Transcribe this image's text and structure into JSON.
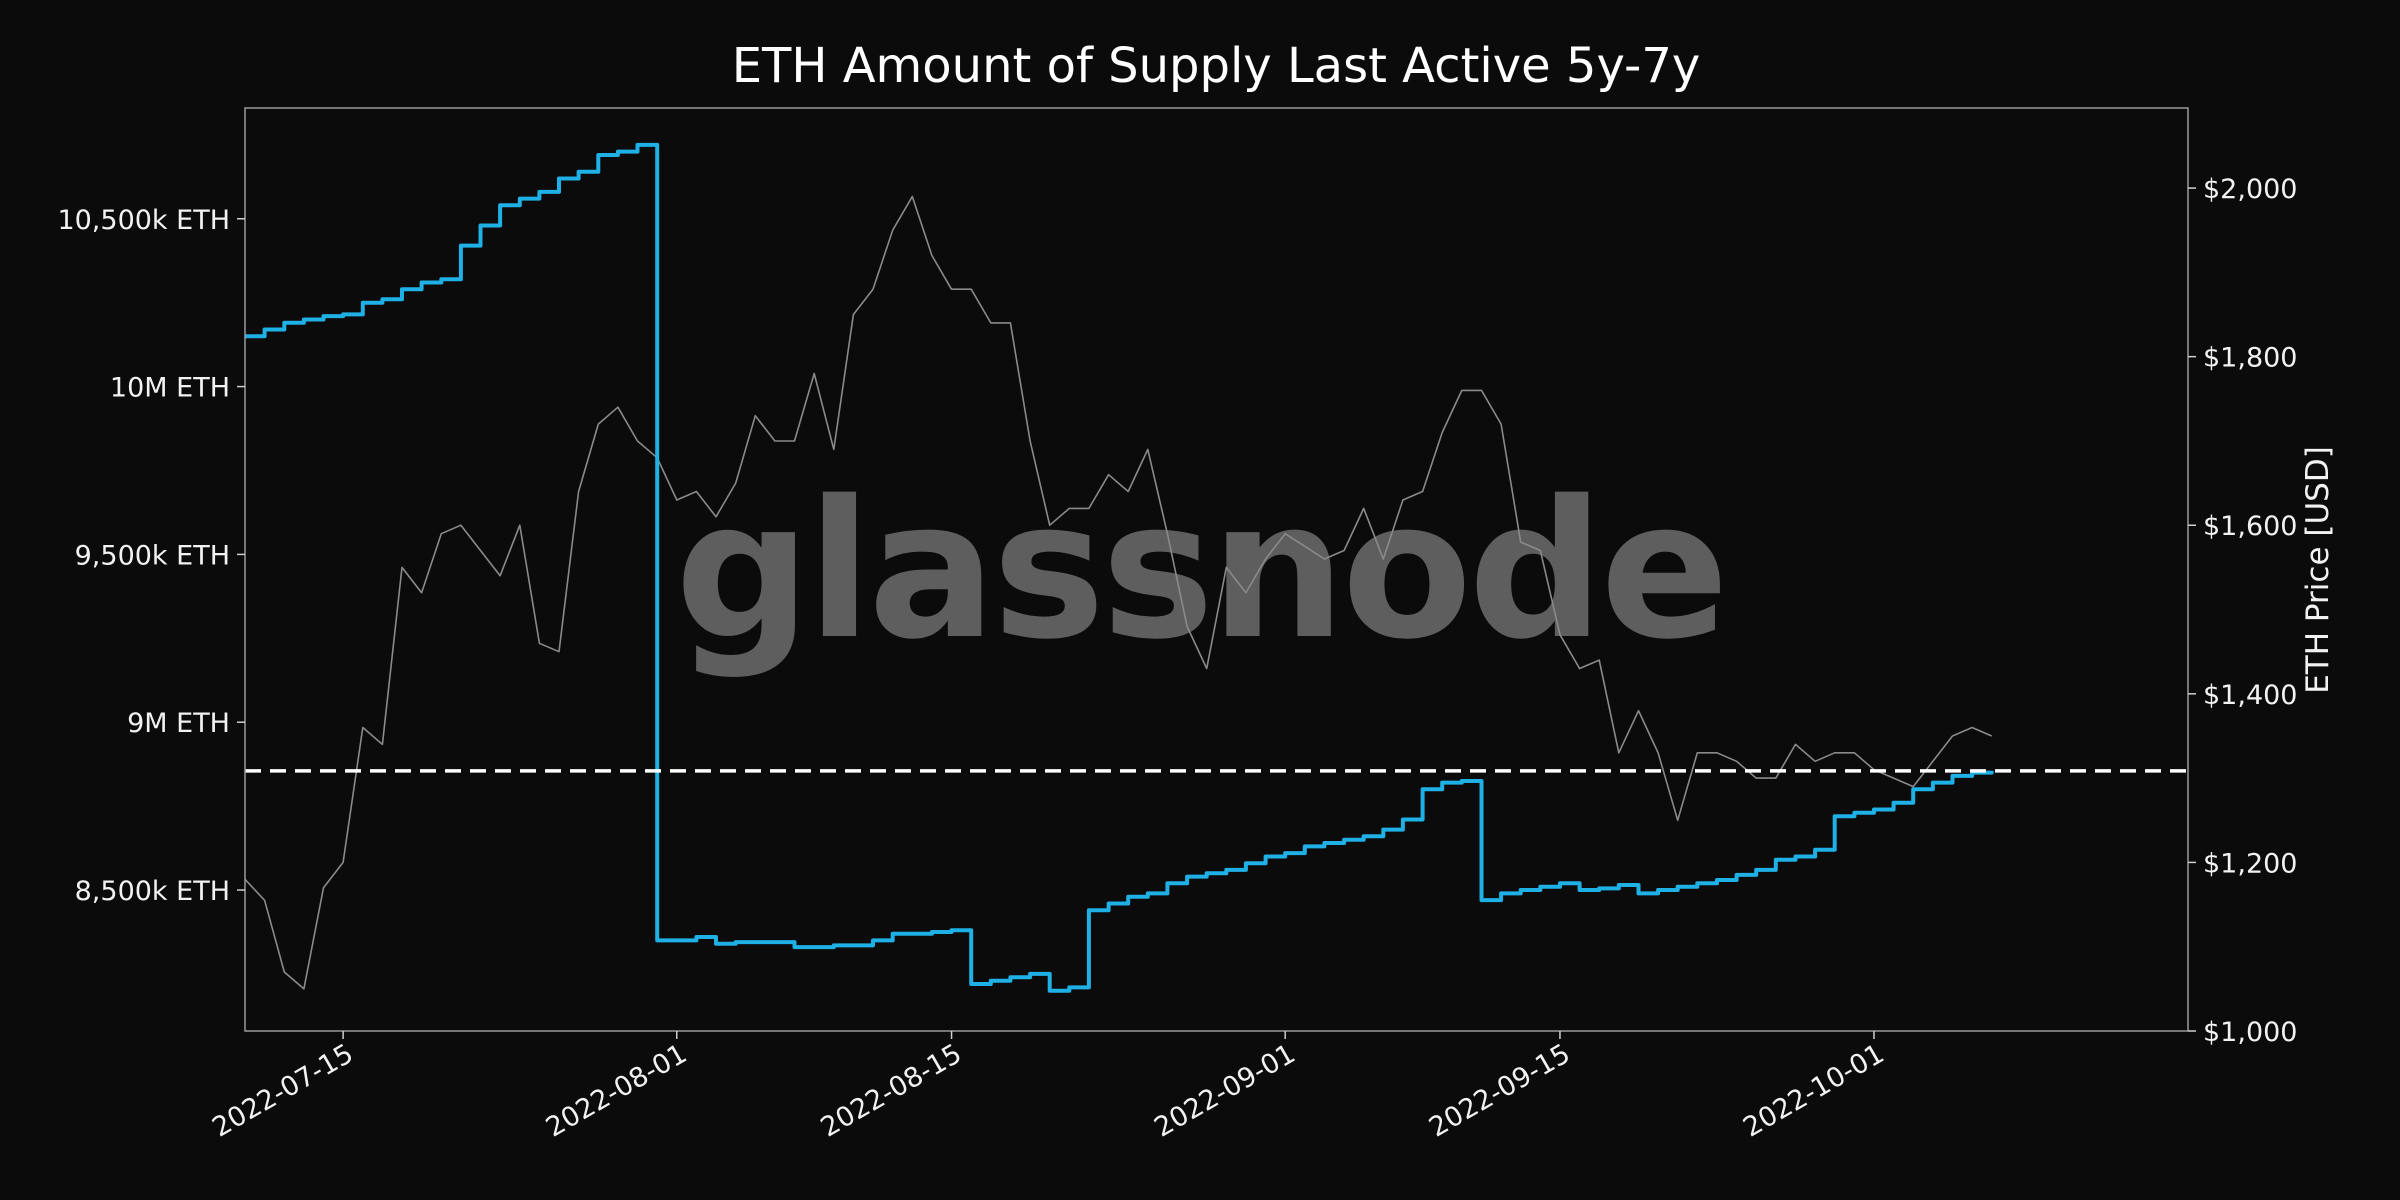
{
  "chart_data": {
    "type": "line",
    "title": "ETH Amount of Supply Last Active 5y-7y",
    "watermark": "glassnode",
    "x_range": [
      "2022-07-10",
      "2022-10-17"
    ],
    "x_ticks": [
      "2022-07-15",
      "2022-08-01",
      "2022-08-15",
      "2022-09-01",
      "2022-09-15",
      "2022-10-01"
    ],
    "y_left": {
      "label": "",
      "range": [
        8080000,
        10830000
      ],
      "ticks": [
        {
          "value": 8500000,
          "label": "8,500k ETH"
        },
        {
          "value": 9000000,
          "label": "9M ETH"
        },
        {
          "value": 9500000,
          "label": "9,500k ETH"
        },
        {
          "value": 10000000,
          "label": "10M ETH"
        },
        {
          "value": 10500000,
          "label": "10,500k ETH"
        }
      ]
    },
    "y_right": {
      "label": "ETH Price [USD]",
      "range": [
        1000,
        2095
      ],
      "ticks": [
        {
          "value": 1000,
          "label": "$1,000"
        },
        {
          "value": 1200,
          "label": "$1,200"
        },
        {
          "value": 1400,
          "label": "$1,400"
        },
        {
          "value": 1600,
          "label": "$1,600"
        },
        {
          "value": 1800,
          "label": "$1,800"
        },
        {
          "value": 2000,
          "label": "$2,000"
        }
      ]
    },
    "reference_line": {
      "value": 8855000,
      "axis": "left",
      "style": "dashed",
      "color": "#ffffff"
    },
    "series": [
      {
        "axis": "left",
        "color": "#1fb0e6",
        "step": true,
        "points": [
          [
            "2022-07-10",
            10150000
          ],
          [
            "2022-07-11",
            10170000
          ],
          [
            "2022-07-12",
            10190000
          ],
          [
            "2022-07-13",
            10200000
          ],
          [
            "2022-07-14",
            10210000
          ],
          [
            "2022-07-15",
            10215000
          ],
          [
            "2022-07-16",
            10250000
          ],
          [
            "2022-07-17",
            10260000
          ],
          [
            "2022-07-18",
            10290000
          ],
          [
            "2022-07-19",
            10310000
          ],
          [
            "2022-07-20",
            10320000
          ],
          [
            "2022-07-21",
            10420000
          ],
          [
            "2022-07-22",
            10480000
          ],
          [
            "2022-07-23",
            10540000
          ],
          [
            "2022-07-24",
            10560000
          ],
          [
            "2022-07-25",
            10580000
          ],
          [
            "2022-07-26",
            10620000
          ],
          [
            "2022-07-27",
            10640000
          ],
          [
            "2022-07-28",
            10690000
          ],
          [
            "2022-07-29",
            10700000
          ],
          [
            "2022-07-30",
            10720000
          ],
          [
            "2022-07-31",
            8350000
          ],
          [
            "2022-08-02",
            8360000
          ],
          [
            "2022-08-03",
            8340000
          ],
          [
            "2022-08-04",
            8345000
          ],
          [
            "2022-08-06",
            8345000
          ],
          [
            "2022-08-07",
            8330000
          ],
          [
            "2022-08-09",
            8335000
          ],
          [
            "2022-08-11",
            8350000
          ],
          [
            "2022-08-12",
            8370000
          ],
          [
            "2022-08-14",
            8375000
          ],
          [
            "2022-08-15",
            8380000
          ],
          [
            "2022-08-16",
            8220000
          ],
          [
            "2022-08-17",
            8230000
          ],
          [
            "2022-08-18",
            8240000
          ],
          [
            "2022-08-19",
            8250000
          ],
          [
            "2022-08-20",
            8200000
          ],
          [
            "2022-08-21",
            8210000
          ],
          [
            "2022-08-22",
            8440000
          ],
          [
            "2022-08-23",
            8460000
          ],
          [
            "2022-08-24",
            8480000
          ],
          [
            "2022-08-25",
            8490000
          ],
          [
            "2022-08-26",
            8520000
          ],
          [
            "2022-08-27",
            8540000
          ],
          [
            "2022-08-28",
            8550000
          ],
          [
            "2022-08-29",
            8560000
          ],
          [
            "2022-08-30",
            8580000
          ],
          [
            "2022-08-31",
            8600000
          ],
          [
            "2022-09-01",
            8610000
          ],
          [
            "2022-09-02",
            8630000
          ],
          [
            "2022-09-03",
            8640000
          ],
          [
            "2022-09-04",
            8650000
          ],
          [
            "2022-09-05",
            8660000
          ],
          [
            "2022-09-06",
            8680000
          ],
          [
            "2022-09-07",
            8710000
          ],
          [
            "2022-09-08",
            8800000
          ],
          [
            "2022-09-09",
            8820000
          ],
          [
            "2022-09-10",
            8825000
          ],
          [
            "2022-09-11",
            8470000
          ],
          [
            "2022-09-12",
            8490000
          ],
          [
            "2022-09-13",
            8500000
          ],
          [
            "2022-09-14",
            8510000
          ],
          [
            "2022-09-15",
            8520000
          ],
          [
            "2022-09-16",
            8500000
          ],
          [
            "2022-09-17",
            8505000
          ],
          [
            "2022-09-18",
            8515000
          ],
          [
            "2022-09-19",
            8490000
          ],
          [
            "2022-09-20",
            8500000
          ],
          [
            "2022-09-21",
            8510000
          ],
          [
            "2022-09-22",
            8520000
          ],
          [
            "2022-09-23",
            8530000
          ],
          [
            "2022-09-24",
            8545000
          ],
          [
            "2022-09-25",
            8560000
          ],
          [
            "2022-09-26",
            8590000
          ],
          [
            "2022-09-27",
            8600000
          ],
          [
            "2022-09-28",
            8620000
          ],
          [
            "2022-09-29",
            8720000
          ],
          [
            "2022-09-30",
            8730000
          ],
          [
            "2022-10-01",
            8740000
          ],
          [
            "2022-10-02",
            8760000
          ],
          [
            "2022-10-03",
            8800000
          ],
          [
            "2022-10-04",
            8820000
          ],
          [
            "2022-10-05",
            8840000
          ],
          [
            "2022-10-06",
            8850000
          ],
          [
            "2022-10-07",
            8855000
          ]
        ]
      },
      {
        "axis": "right",
        "color": "#8a8a8a",
        "step": false,
        "points": [
          [
            "2022-07-10",
            1180
          ],
          [
            "2022-07-11",
            1155
          ],
          [
            "2022-07-12",
            1070
          ],
          [
            "2022-07-13",
            1050
          ],
          [
            "2022-07-14",
            1170
          ],
          [
            "2022-07-15",
            1200
          ],
          [
            "2022-07-16",
            1360
          ],
          [
            "2022-07-17",
            1340
          ],
          [
            "2022-07-18",
            1550
          ],
          [
            "2022-07-19",
            1520
          ],
          [
            "2022-07-20",
            1590
          ],
          [
            "2022-07-21",
            1600
          ],
          [
            "2022-07-22",
            1570
          ],
          [
            "2022-07-23",
            1540
          ],
          [
            "2022-07-24",
            1600
          ],
          [
            "2022-07-25",
            1460
          ],
          [
            "2022-07-26",
            1450
          ],
          [
            "2022-07-27",
            1640
          ],
          [
            "2022-07-28",
            1720
          ],
          [
            "2022-07-29",
            1740
          ],
          [
            "2022-07-30",
            1700
          ],
          [
            "2022-07-31",
            1680
          ],
          [
            "2022-08-01",
            1630
          ],
          [
            "2022-08-02",
            1640
          ],
          [
            "2022-08-03",
            1610
          ],
          [
            "2022-08-04",
            1650
          ],
          [
            "2022-08-05",
            1730
          ],
          [
            "2022-08-06",
            1700
          ],
          [
            "2022-08-07",
            1700
          ],
          [
            "2022-08-08",
            1780
          ],
          [
            "2022-08-09",
            1690
          ],
          [
            "2022-08-10",
            1850
          ],
          [
            "2022-08-11",
            1880
          ],
          [
            "2022-08-12",
            1950
          ],
          [
            "2022-08-13",
            1990
          ],
          [
            "2022-08-14",
            1920
          ],
          [
            "2022-08-15",
            1880
          ],
          [
            "2022-08-16",
            1880
          ],
          [
            "2022-08-17",
            1840
          ],
          [
            "2022-08-18",
            1840
          ],
          [
            "2022-08-19",
            1700
          ],
          [
            "2022-08-20",
            1600
          ],
          [
            "2022-08-21",
            1620
          ],
          [
            "2022-08-22",
            1620
          ],
          [
            "2022-08-23",
            1660
          ],
          [
            "2022-08-24",
            1640
          ],
          [
            "2022-08-25",
            1690
          ],
          [
            "2022-08-26",
            1590
          ],
          [
            "2022-08-27",
            1480
          ],
          [
            "2022-08-28",
            1430
          ],
          [
            "2022-08-29",
            1550
          ],
          [
            "2022-08-30",
            1520
          ],
          [
            "2022-08-31",
            1560
          ],
          [
            "2022-09-01",
            1590
          ],
          [
            "2022-09-02",
            1575
          ],
          [
            "2022-09-03",
            1560
          ],
          [
            "2022-09-04",
            1570
          ],
          [
            "2022-09-05",
            1620
          ],
          [
            "2022-09-06",
            1560
          ],
          [
            "2022-09-07",
            1630
          ],
          [
            "2022-09-08",
            1640
          ],
          [
            "2022-09-09",
            1710
          ],
          [
            "2022-09-10",
            1760
          ],
          [
            "2022-09-11",
            1760
          ],
          [
            "2022-09-12",
            1720
          ],
          [
            "2022-09-13",
            1580
          ],
          [
            "2022-09-14",
            1570
          ],
          [
            "2022-09-15",
            1470
          ],
          [
            "2022-09-16",
            1430
          ],
          [
            "2022-09-17",
            1440
          ],
          [
            "2022-09-18",
            1330
          ],
          [
            "2022-09-19",
            1380
          ],
          [
            "2022-09-20",
            1330
          ],
          [
            "2022-09-21",
            1250
          ],
          [
            "2022-09-22",
            1330
          ],
          [
            "2022-09-23",
            1330
          ],
          [
            "2022-09-24",
            1320
          ],
          [
            "2022-09-25",
            1300
          ],
          [
            "2022-09-26",
            1300
          ],
          [
            "2022-09-27",
            1340
          ],
          [
            "2022-09-28",
            1320
          ],
          [
            "2022-09-29",
            1330
          ],
          [
            "2022-09-30",
            1330
          ],
          [
            "2022-10-01",
            1310
          ],
          [
            "2022-10-02",
            1300
          ],
          [
            "2022-10-03",
            1290
          ],
          [
            "2022-10-04",
            1320
          ],
          [
            "2022-10-05",
            1350
          ],
          [
            "2022-10-06",
            1360
          ],
          [
            "2022-10-07",
            1350
          ]
        ]
      }
    ]
  }
}
